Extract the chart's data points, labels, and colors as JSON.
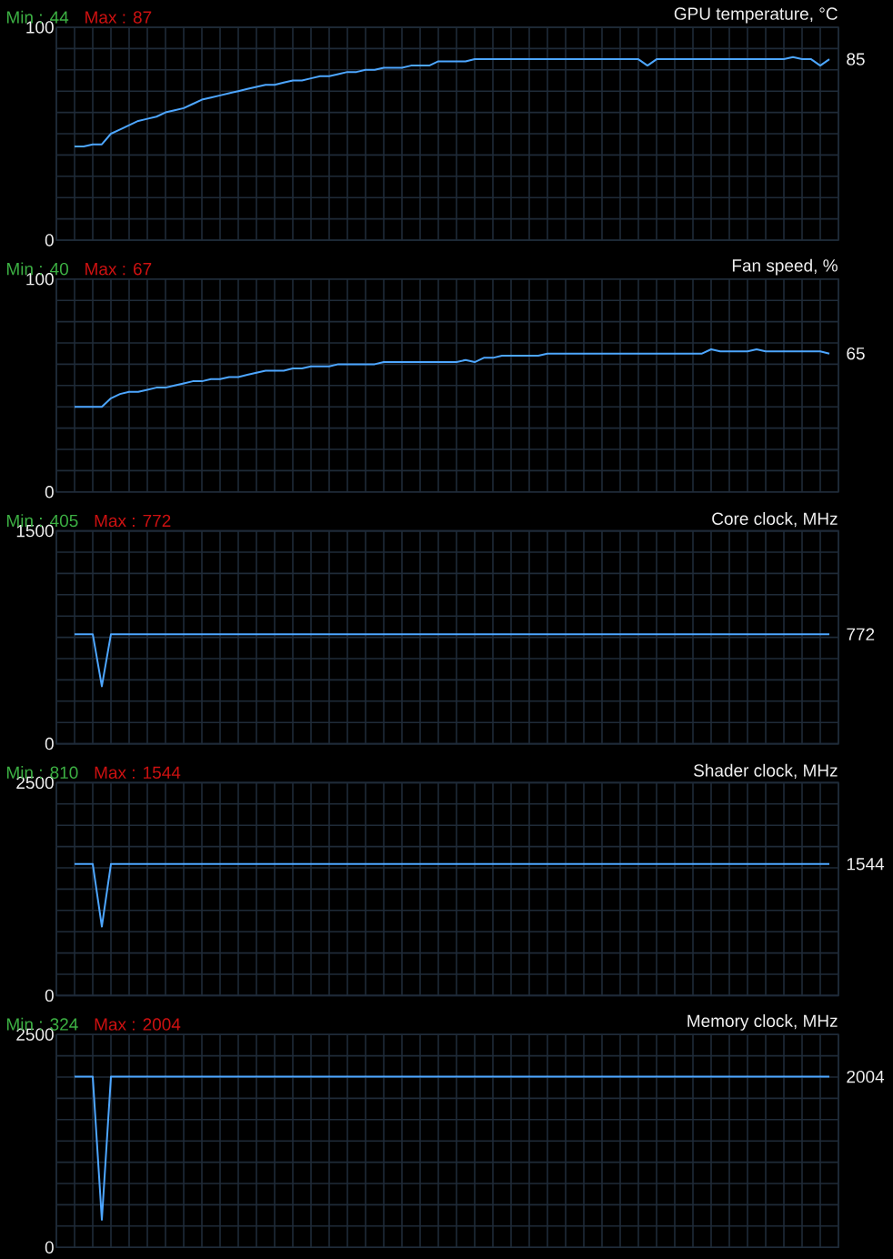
{
  "chart_data": [
    {
      "type": "line",
      "title": "GPU temperature, °C",
      "annotations": [
        "Min : 44",
        "Max : 87",
        "85"
      ],
      "categories": [
        null,
        null,
        null,
        null,
        null,
        null,
        null,
        null,
        null,
        null,
        null,
        null,
        null,
        null,
        null,
        null,
        null,
        null,
        null,
        null,
        null,
        null,
        null,
        null,
        null,
        null,
        null,
        null,
        null,
        null,
        null,
        null,
        null,
        null,
        null,
        null,
        null,
        null,
        null,
        null,
        null,
        null,
        null,
        null,
        null,
        null,
        null,
        null,
        null,
        null,
        null,
        null,
        null,
        null,
        null,
        null,
        null,
        null,
        null,
        null,
        null,
        null,
        null,
        null,
        null,
        null,
        null,
        null,
        null,
        null,
        null,
        null,
        null,
        null,
        null,
        null,
        null,
        null,
        null,
        null,
        null,
        null,
        null,
        null,
        null,
        null,
        null
      ],
      "values": [
        null,
        null,
        44,
        44,
        45,
        45,
        50,
        52,
        54,
        56,
        57,
        58,
        60,
        61,
        62,
        64,
        66,
        67,
        68,
        69,
        70,
        71,
        72,
        73,
        73,
        74,
        75,
        75,
        76,
        77,
        77,
        78,
        79,
        79,
        80,
        80,
        81,
        81,
        81,
        82,
        82,
        82,
        84,
        84,
        84,
        84,
        85,
        85,
        85,
        85,
        85,
        85,
        85,
        85,
        85,
        85,
        85,
        85,
        85,
        85,
        85,
        85,
        85,
        85,
        85,
        82,
        85,
        85,
        85,
        85,
        85,
        85,
        85,
        85,
        85,
        85,
        85,
        85,
        85,
        85,
        85,
        86,
        85,
        85,
        82,
        85,
        null
      ],
      "color": "#4da6ff",
      "ylim": [
        0,
        100
      ],
      "yticks": [
        0,
        {
          "value": 10,
          "label": null
        },
        {
          "value": 20,
          "label": null
        },
        {
          "value": 30,
          "label": null
        },
        {
          "value": 40,
          "label": null
        },
        {
          "value": 50,
          "label": null
        },
        {
          "value": 60,
          "label": null
        },
        {
          "value": 70,
          "label": null
        },
        {
          "value": 80,
          "label": null
        },
        {
          "value": 90,
          "label": null
        },
        100
      ],
      "grid": true,
      "tick_labels": "y"
    },
    {
      "type": "line",
      "title": "Fan speed, %",
      "annotations": [
        "Min : 40",
        "Max : 67",
        "65"
      ],
      "categories": [
        null,
        null,
        null,
        null,
        null,
        null,
        null,
        null,
        null,
        null,
        null,
        null,
        null,
        null,
        null,
        null,
        null,
        null,
        null,
        null,
        null,
        null,
        null,
        null,
        null,
        null,
        null,
        null,
        null,
        null,
        null,
        null,
        null,
        null,
        null,
        null,
        null,
        null,
        null,
        null,
        null,
        null,
        null,
        null,
        null,
        null,
        null,
        null,
        null,
        null,
        null,
        null,
        null,
        null,
        null,
        null,
        null,
        null,
        null,
        null,
        null,
        null,
        null,
        null,
        null,
        null,
        null,
        null,
        null,
        null,
        null,
        null,
        null,
        null,
        null,
        null,
        null,
        null,
        null,
        null,
        null,
        null,
        null,
        null,
        null,
        null,
        null
      ],
      "values": [
        null,
        null,
        40,
        40,
        40,
        40,
        44,
        46,
        47,
        47,
        48,
        49,
        49,
        50,
        51,
        52,
        52,
        53,
        53,
        54,
        54,
        55,
        56,
        57,
        57,
        57,
        58,
        58,
        59,
        59,
        59,
        60,
        60,
        60,
        60,
        60,
        61,
        61,
        61,
        61,
        61,
        61,
        61,
        61,
        61,
        62,
        61,
        63,
        63,
        64,
        64,
        64,
        64,
        64,
        65,
        65,
        65,
        65,
        65,
        65,
        65,
        65,
        65,
        65,
        65,
        65,
        65,
        65,
        65,
        65,
        65,
        65,
        67,
        66,
        66,
        66,
        66,
        67,
        66,
        66,
        66,
        66,
        66,
        66,
        66,
        65,
        null
      ],
      "color": "#4da6ff",
      "ylim": [
        0,
        100
      ],
      "yticks": [
        0,
        {
          "value": 10,
          "label": null
        },
        {
          "value": 20,
          "label": null
        },
        {
          "value": 30,
          "label": null
        },
        {
          "value": 40,
          "label": null
        },
        {
          "value": 50,
          "label": null
        },
        {
          "value": 60,
          "label": null
        },
        {
          "value": 70,
          "label": null
        },
        {
          "value": 80,
          "label": null
        },
        {
          "value": 90,
          "label": null
        },
        100
      ],
      "grid": true,
      "tick_labels": "y"
    },
    {
      "type": "line",
      "title": "Core clock, MHz",
      "annotations": [
        "Min : 405",
        "Max : 772",
        "772"
      ],
      "categories": [
        null,
        null,
        null,
        null,
        null,
        null,
        null,
        null,
        null,
        null,
        null,
        null,
        null,
        null,
        null,
        null,
        null,
        null,
        null,
        null,
        null,
        null,
        null,
        null,
        null,
        null,
        null,
        null,
        null,
        null,
        null,
        null,
        null,
        null,
        null,
        null,
        null,
        null,
        null,
        null,
        null,
        null,
        null,
        null,
        null,
        null,
        null,
        null,
        null,
        null,
        null,
        null,
        null,
        null,
        null,
        null,
        null,
        null,
        null,
        null,
        null,
        null,
        null,
        null,
        null,
        null,
        null,
        null,
        null,
        null,
        null,
        null,
        null,
        null,
        null,
        null,
        null,
        null,
        null,
        null,
        null,
        null,
        null,
        null,
        null,
        null,
        null
      ],
      "values": [
        null,
        null,
        772,
        772,
        772,
        405,
        772,
        772,
        772,
        772,
        772,
        772,
        772,
        772,
        772,
        772,
        772,
        772,
        772,
        772,
        772,
        772,
        772,
        772,
        772,
        772,
        772,
        772,
        772,
        772,
        772,
        772,
        772,
        772,
        772,
        772,
        772,
        772,
        772,
        772,
        772,
        772,
        772,
        772,
        772,
        772,
        772,
        772,
        772,
        772,
        772,
        772,
        772,
        772,
        772,
        772,
        772,
        772,
        772,
        772,
        772,
        772,
        772,
        772,
        772,
        772,
        772,
        772,
        772,
        772,
        772,
        772,
        772,
        772,
        772,
        772,
        772,
        772,
        772,
        772,
        772,
        772,
        772,
        772,
        772,
        772,
        null
      ],
      "color": "#4da6ff",
      "ylim": [
        0,
        1500
      ],
      "yticks": [
        0,
        {
          "value": 150,
          "label": null
        },
        {
          "value": 300,
          "label": null
        },
        {
          "value": 450,
          "label": null
        },
        {
          "value": 600,
          "label": null
        },
        {
          "value": 750,
          "label": null
        },
        {
          "value": 900,
          "label": null
        },
        {
          "value": 1050,
          "label": null
        },
        {
          "value": 1200,
          "label": null
        },
        {
          "value": 1350,
          "label": null
        },
        1500
      ],
      "grid": true,
      "tick_labels": "y"
    },
    {
      "type": "line",
      "title": "Shader clock, MHz",
      "annotations": [
        "Min : 810",
        "Max : 1544",
        "1544"
      ],
      "categories": [
        null,
        null,
        null,
        null,
        null,
        null,
        null,
        null,
        null,
        null,
        null,
        null,
        null,
        null,
        null,
        null,
        null,
        null,
        null,
        null,
        null,
        null,
        null,
        null,
        null,
        null,
        null,
        null,
        null,
        null,
        null,
        null,
        null,
        null,
        null,
        null,
        null,
        null,
        null,
        null,
        null,
        null,
        null,
        null,
        null,
        null,
        null,
        null,
        null,
        null,
        null,
        null,
        null,
        null,
        null,
        null,
        null,
        null,
        null,
        null,
        null,
        null,
        null,
        null,
        null,
        null,
        null,
        null,
        null,
        null,
        null,
        null,
        null,
        null,
        null,
        null,
        null,
        null,
        null,
        null,
        null,
        null,
        null,
        null,
        null,
        null,
        null
      ],
      "values": [
        null,
        null,
        1544,
        1544,
        1544,
        810,
        1544,
        1544,
        1544,
        1544,
        1544,
        1544,
        1544,
        1544,
        1544,
        1544,
        1544,
        1544,
        1544,
        1544,
        1544,
        1544,
        1544,
        1544,
        1544,
        1544,
        1544,
        1544,
        1544,
        1544,
        1544,
        1544,
        1544,
        1544,
        1544,
        1544,
        1544,
        1544,
        1544,
        1544,
        1544,
        1544,
        1544,
        1544,
        1544,
        1544,
        1544,
        1544,
        1544,
        1544,
        1544,
        1544,
        1544,
        1544,
        1544,
        1544,
        1544,
        1544,
        1544,
        1544,
        1544,
        1544,
        1544,
        1544,
        1544,
        1544,
        1544,
        1544,
        1544,
        1544,
        1544,
        1544,
        1544,
        1544,
        1544,
        1544,
        1544,
        1544,
        1544,
        1544,
        1544,
        1544,
        1544,
        1544,
        1544,
        1544,
        null
      ],
      "color": "#4da6ff",
      "ylim": [
        0,
        2500
      ],
      "yticks": [
        0,
        {
          "value": 250,
          "label": null
        },
        {
          "value": 500,
          "label": null
        },
        {
          "value": 750,
          "label": null
        },
        {
          "value": 1000,
          "label": null
        },
        {
          "value": 1250,
          "label": null
        },
        {
          "value": 1500,
          "label": null
        },
        {
          "value": 1750,
          "label": null
        },
        {
          "value": 2000,
          "label": null
        },
        {
          "value": 2250,
          "label": null
        },
        2500
      ],
      "grid": true,
      "tick_labels": "y"
    },
    {
      "type": "line",
      "title": "Memory clock, MHz",
      "annotations": [
        "Min : 324",
        "Max : 2004",
        "2004"
      ],
      "categories": [
        null,
        null,
        null,
        null,
        null,
        null,
        null,
        null,
        null,
        null,
        null,
        null,
        null,
        null,
        null,
        null,
        null,
        null,
        null,
        null,
        null,
        null,
        null,
        null,
        null,
        null,
        null,
        null,
        null,
        null,
        null,
        null,
        null,
        null,
        null,
        null,
        null,
        null,
        null,
        null,
        null,
        null,
        null,
        null,
        null,
        null,
        null,
        null,
        null,
        null,
        null,
        null,
        null,
        null,
        null,
        null,
        null,
        null,
        null,
        null,
        null,
        null,
        null,
        null,
        null,
        null,
        null,
        null,
        null,
        null,
        null,
        null,
        null,
        null,
        null,
        null,
        null,
        null,
        null,
        null,
        null,
        null,
        null,
        null,
        null,
        null,
        null
      ],
      "values": [
        null,
        null,
        2004,
        2004,
        2004,
        324,
        2004,
        2004,
        2004,
        2004,
        2004,
        2004,
        2004,
        2004,
        2004,
        2004,
        2004,
        2004,
        2004,
        2004,
        2004,
        2004,
        2004,
        2004,
        2004,
        2004,
        2004,
        2004,
        2004,
        2004,
        2004,
        2004,
        2004,
        2004,
        2004,
        2004,
        2004,
        2004,
        2004,
        2004,
        2004,
        2004,
        2004,
        2004,
        2004,
        2004,
        2004,
        2004,
        2004,
        2004,
        2004,
        2004,
        2004,
        2004,
        2004,
        2004,
        2004,
        2004,
        2004,
        2004,
        2004,
        2004,
        2004,
        2004,
        2004,
        2004,
        2004,
        2004,
        2004,
        2004,
        2004,
        2004,
        2004,
        2004,
        2004,
        2004,
        2004,
        2004,
        2004,
        2004,
        2004,
        2004,
        2004,
        2004,
        2004,
        2004,
        null
      ],
      "color": "#4da6ff",
      "ylim": [
        0,
        2500
      ],
      "yticks": [
        0,
        {
          "value": 250,
          "label": null
        },
        {
          "value": 500,
          "label": null
        },
        {
          "value": 750,
          "label": null
        },
        {
          "value": 1000,
          "label": null
        },
        {
          "value": 1250,
          "label": null
        },
        {
          "value": 1500,
          "label": null
        },
        {
          "value": 1750,
          "label": null
        },
        {
          "value": 2000,
          "label": null
        },
        {
          "value": 2250,
          "label": null
        },
        2500
      ],
      "grid": true,
      "tick_labels": "y"
    }
  ]
}
